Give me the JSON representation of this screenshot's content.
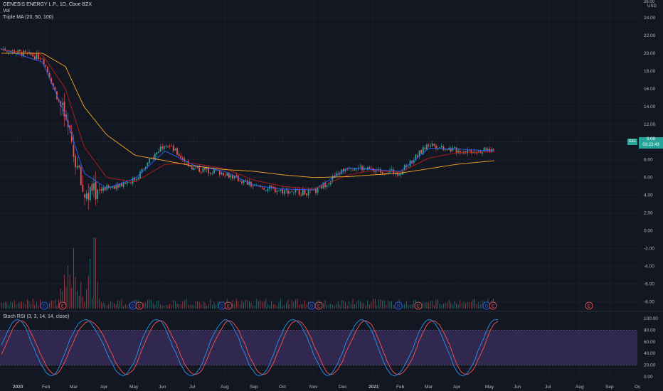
{
  "header": {
    "title": "GENESIS ENERGY L.P., 1D, Cboe BZX",
    "volume_label": "Vol",
    "ma_label": "Triple MA (20, 50, 100)",
    "currency": "USD",
    "top_price_label": "26.00"
  },
  "price_marker": {
    "symbol_tag": "GEL",
    "last_price": "9.08",
    "countdown": "03:23:43"
  },
  "stoch_rsi": {
    "label": "Stoch RSI (3, 3, 14, 14, close)",
    "axis_labels": [
      "100.00",
      "80.00",
      "60.00",
      "40.00",
      "20.00",
      "0.00"
    ]
  },
  "colors": {
    "background": "#131722",
    "grid": "#1f2330",
    "up": "#26a69a",
    "down": "#ef5350",
    "ma_fast": "#2962ff",
    "ma_mid": "#b71c1c",
    "ma_slow": "#f9a825",
    "rsi_k": "#2196f3",
    "rsi_d": "#ff5252",
    "rsi_band": "#7e57c2"
  },
  "chart_data": {
    "type": "candlestick",
    "title": "GENESIS ENERGY L.P., 1D, Cboe BZX",
    "y_axis_labels": [
      "24.00",
      "22.00",
      "20.00",
      "18.00",
      "16.00",
      "14.00",
      "12.00",
      "10.00",
      "8.00",
      "6.00",
      "4.00",
      "2.00",
      "0.00",
      "-2.00",
      "-4.00",
      "-6.00",
      "-8.00"
    ],
    "x_axis_labels": [
      "2020",
      "Feb",
      "Mar",
      "Apr",
      "May",
      "Jun",
      "Jul",
      "Aug",
      "Sep",
      "Oct",
      "Nov",
      "Dec",
      "2021",
      "Feb",
      "Mar",
      "Apr",
      "May",
      "Jun",
      "Jul",
      "Aug",
      "Sep",
      "Oc"
    ],
    "ylim": [
      -9,
      26
    ],
    "close_series_approx": {
      "dates": [
        "2020-01",
        "2020-02",
        "2020-03-01",
        "2020-03-20",
        "2020-04",
        "2020-05",
        "2020-06-05",
        "2020-07",
        "2020-08",
        "2020-09",
        "2020-10",
        "2020-11-01",
        "2020-12",
        "2021-01",
        "2021-02",
        "2021-03",
        "2021-04",
        "2021-05"
      ],
      "values": [
        20.5,
        19.5,
        12.5,
        4.0,
        4.8,
        5.8,
        10.0,
        7.0,
        6.5,
        5.0,
        4.5,
        4.3,
        7.3,
        6.8,
        6.6,
        9.8,
        9.0,
        9.08
      ]
    },
    "ma_series_approx": [
      {
        "name": "MA 20",
        "values": [
          20.5,
          19.0,
          13.0,
          6.5,
          4.8,
          5.9,
          9.0,
          7.4,
          6.7,
          5.1,
          4.7,
          4.6,
          7.1,
          6.9,
          6.7,
          9.3,
          9.2,
          9.0
        ]
      },
      {
        "name": "MA 50",
        "values": [
          20.4,
          19.8,
          16.0,
          9.5,
          6.0,
          5.5,
          7.5,
          7.6,
          7.0,
          5.7,
          5.0,
          4.7,
          6.3,
          6.8,
          6.6,
          8.2,
          8.8,
          8.9
        ]
      },
      {
        "name": "MA 100",
        "values": [
          20.0,
          20.0,
          18.5,
          14.0,
          10.8,
          8.5,
          7.9,
          7.3,
          6.9,
          6.7,
          6.3,
          6.0,
          6.1,
          6.3,
          6.5,
          7.0,
          7.5,
          7.9
        ]
      }
    ],
    "events": [
      "D",
      "E",
      "D",
      "E",
      "D",
      "E",
      "D",
      "E",
      "D",
      "E",
      "D",
      "E",
      "D",
      "E",
      "E"
    ]
  }
}
